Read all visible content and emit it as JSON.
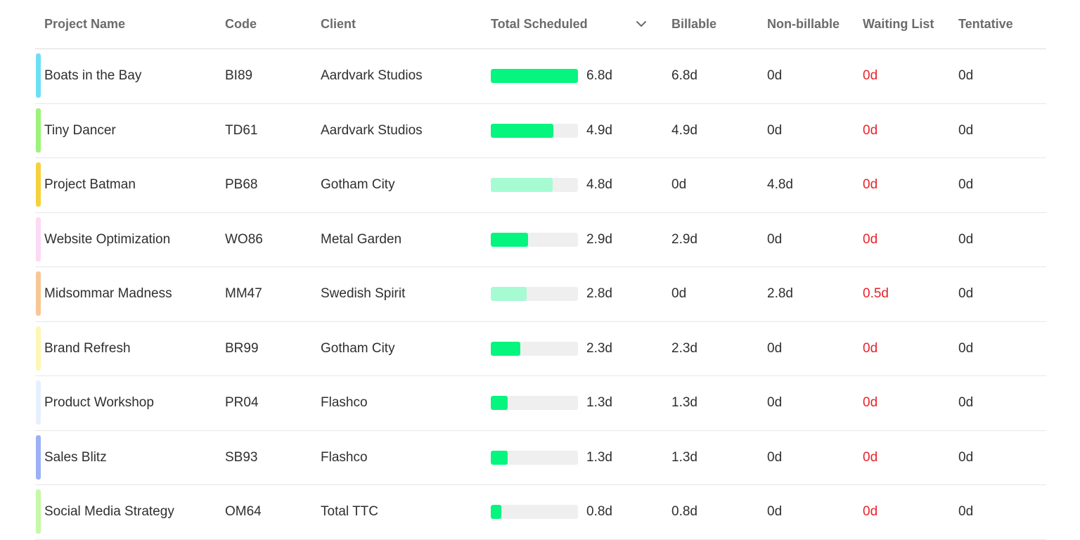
{
  "headers": {
    "project_name": "Project Name",
    "code": "Code",
    "client": "Client",
    "total_scheduled": "Total Scheduled",
    "billable": "Billable",
    "non_billable": "Non-billable",
    "waiting_list": "Waiting List",
    "tentative": "Tentative",
    "sort_icon": "chevron-down-icon"
  },
  "colors": {
    "billable_bar": "#06f57f",
    "non_billable_bar": "#a6fbd2",
    "bar_track": "#efefef",
    "waiting_text": "#e8222b"
  },
  "rows": [
    {
      "name": "Boats in the Bay",
      "code": "BI89",
      "client": "Aardvark Studios",
      "color": "#6ddff5",
      "total": "6.8d",
      "total_fraction": 1.0,
      "billable_type": true,
      "billable": "6.8d",
      "non_billable": "0d",
      "waiting": "0d",
      "tentative": "0d"
    },
    {
      "name": "Tiny Dancer",
      "code": "TD61",
      "client": "Aardvark Studios",
      "color": "#9df27a",
      "total": "4.9d",
      "total_fraction": 0.72,
      "billable_type": true,
      "billable": "4.9d",
      "non_billable": "0d",
      "waiting": "0d",
      "tentative": "0d"
    },
    {
      "name": "Project Batman",
      "code": "PB68",
      "client": "Gotham City",
      "color": "#f7d13b",
      "total": "4.8d",
      "total_fraction": 0.71,
      "billable_type": false,
      "billable": "0d",
      "non_billable": "4.8d",
      "waiting": "0d",
      "tentative": "0d"
    },
    {
      "name": "Website Optimization",
      "code": "WO86",
      "client": "Metal Garden",
      "color": "#fcd9f4",
      "total": "2.9d",
      "total_fraction": 0.43,
      "billable_type": true,
      "billable": "2.9d",
      "non_billable": "0d",
      "waiting": "0d",
      "tentative": "0d"
    },
    {
      "name": "Midsommar Madness",
      "code": "MM47",
      "client": "Swedish Spirit",
      "color": "#f8c795",
      "total": "2.8d",
      "total_fraction": 0.41,
      "billable_type": false,
      "billable": "0d",
      "non_billable": "2.8d",
      "waiting": "0.5d",
      "tentative": "0d"
    },
    {
      "name": "Brand Refresh",
      "code": "BR99",
      "client": "Gotham City",
      "color": "#fef6b7",
      "total": "2.3d",
      "total_fraction": 0.34,
      "billable_type": true,
      "billable": "2.3d",
      "non_billable": "0d",
      "waiting": "0d",
      "tentative": "0d"
    },
    {
      "name": "Product Workshop",
      "code": "PR04",
      "client": "Flashco",
      "color": "#e7f0fd",
      "total": "1.3d",
      "total_fraction": 0.19,
      "billable_type": true,
      "billable": "1.3d",
      "non_billable": "0d",
      "waiting": "0d",
      "tentative": "0d"
    },
    {
      "name": "Sales Blitz",
      "code": "SB93",
      "client": "Flashco",
      "color": "#9cb0f5",
      "total": "1.3d",
      "total_fraction": 0.19,
      "billable_type": true,
      "billable": "1.3d",
      "non_billable": "0d",
      "waiting": "0d",
      "tentative": "0d"
    },
    {
      "name": "Social Media Strategy",
      "code": "OM64",
      "client": "Total TTC",
      "color": "#c5f9a7",
      "total": "0.8d",
      "total_fraction": 0.12,
      "billable_type": true,
      "billable": "0.8d",
      "non_billable": "0d",
      "waiting": "0d",
      "tentative": "0d"
    }
  ]
}
